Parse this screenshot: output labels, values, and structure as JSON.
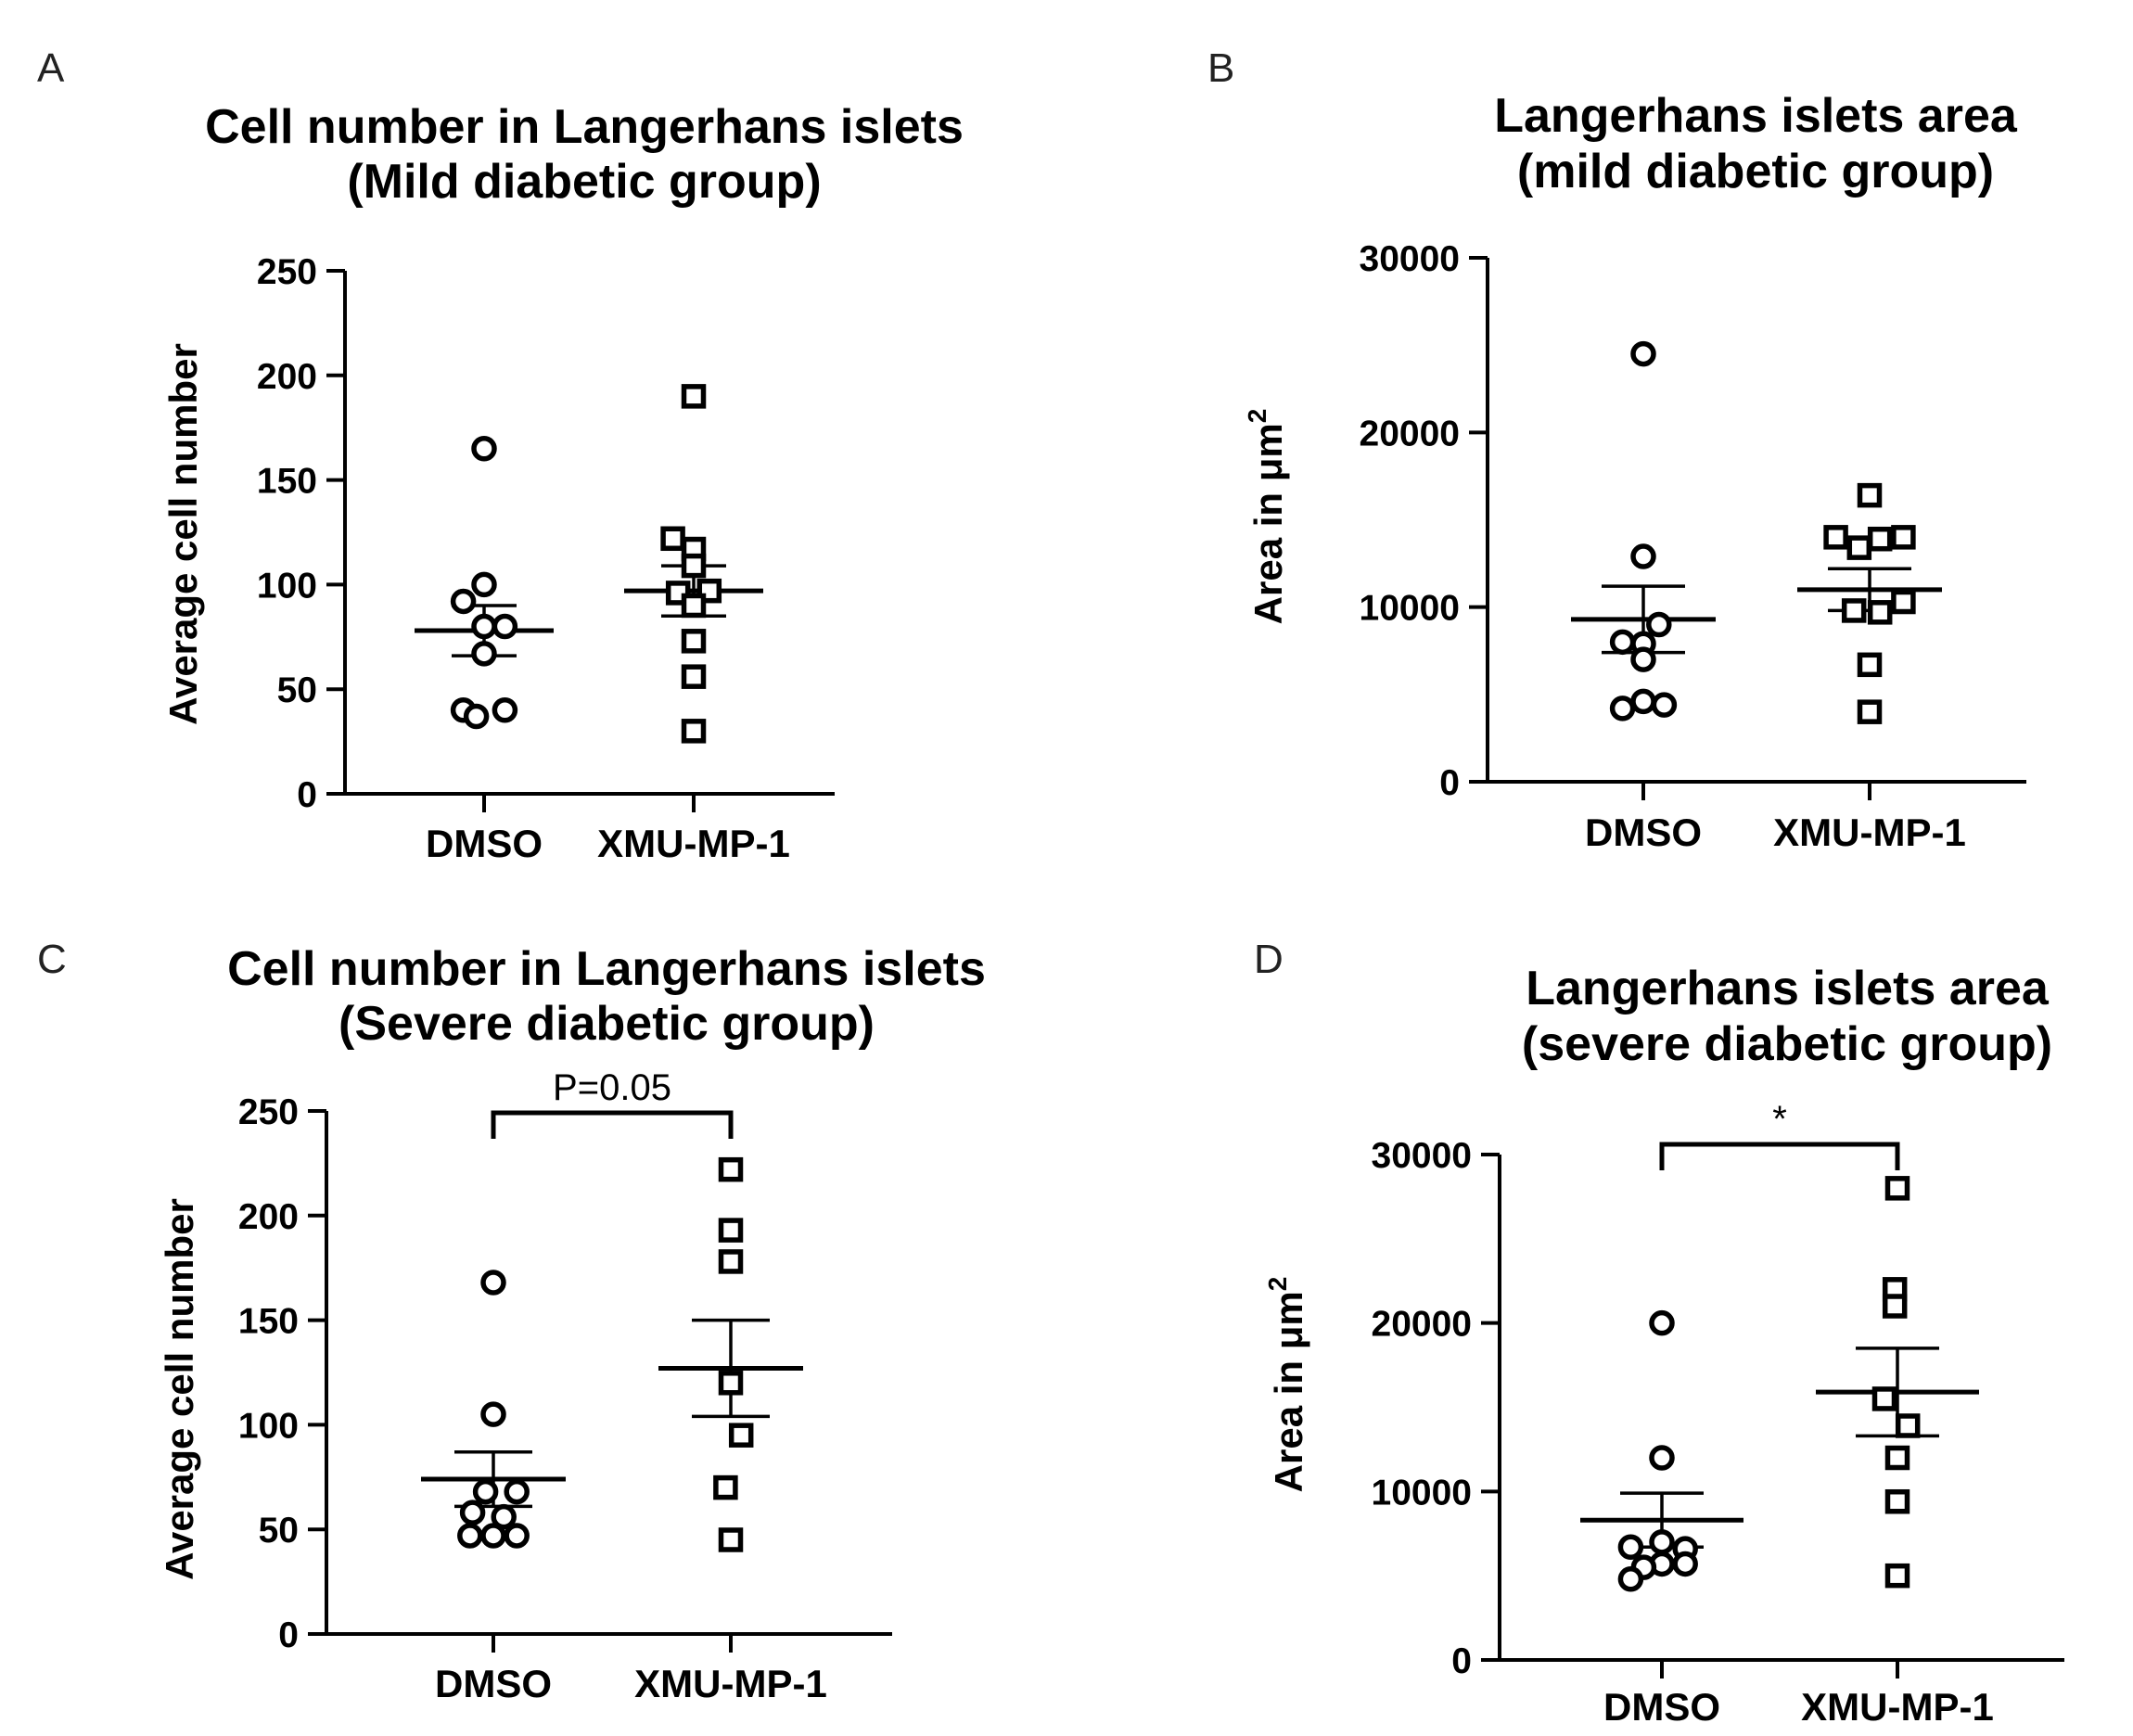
{
  "chart_data": [
    {
      "panel": "A",
      "type": "scatter",
      "title": [
        "Cell number in Langerhans islets",
        "(Mild diabetic group)"
      ],
      "ylabel": "Average cell number",
      "ylabel_sup": "",
      "ylim": [
        0,
        250
      ],
      "yticks": [
        0,
        50,
        100,
        150,
        200,
        250
      ],
      "categories": [
        "DMSO",
        "XMU-MP-1"
      ],
      "series": [
        {
          "name": "DMSO",
          "marker": "circle",
          "mean": 78,
          "sem": 12,
          "values": [
            165,
            100,
            92,
            80,
            80,
            67,
            40,
            40,
            37
          ],
          "offsets": [
            0,
            0,
            -0.4,
            0,
            0.4,
            0,
            -0.4,
            0.4,
            -0.15
          ]
        },
        {
          "name": "XMU-MP-1",
          "marker": "square",
          "mean": 97,
          "sem": 12,
          "values": [
            190,
            122,
            117,
            109,
            96,
            97,
            90,
            73,
            56,
            30
          ],
          "offsets": [
            0,
            -0.4,
            0,
            0,
            -0.3,
            0.3,
            0,
            0,
            0,
            0
          ]
        }
      ],
      "significance": null
    },
    {
      "panel": "B",
      "type": "scatter",
      "title": [
        "Langerhans islets area",
        "(mild diabetic group)"
      ],
      "ylabel": "Area in μm",
      "ylabel_sup": "2",
      "ylim": [
        0,
        30000
      ],
      "yticks": [
        0,
        10000,
        20000,
        30000
      ],
      "categories": [
        "DMSO",
        "XMU-MP-1"
      ],
      "series": [
        {
          "name": "DMSO",
          "marker": "circle",
          "mean": 9300,
          "sem": 1900,
          "values": [
            24500,
            12900,
            9000,
            8000,
            7900,
            7000,
            4600,
            4400,
            4200
          ],
          "offsets": [
            0,
            0,
            0.3,
            -0.4,
            0,
            0,
            0,
            0.4,
            -0.4
          ]
        },
        {
          "name": "XMU-MP-1",
          "marker": "square",
          "mean": 11000,
          "sem": 1200,
          "values": [
            16400,
            14000,
            14000,
            13900,
            13400,
            10300,
            9800,
            9700,
            6700,
            4000
          ],
          "offsets": [
            0,
            -0.65,
            0.65,
            0.2,
            -0.2,
            0.65,
            -0.3,
            0.2,
            0,
            0
          ]
        }
      ],
      "significance": null
    },
    {
      "panel": "C",
      "type": "scatter",
      "title": [
        "Cell number in Langerhans islets",
        "(Severe diabetic group)"
      ],
      "ylabel": "Average cell number",
      "ylabel_sup": "",
      "ylim": [
        0,
        250
      ],
      "yticks": [
        0,
        50,
        100,
        150,
        200,
        250
      ],
      "categories": [
        "DMSO",
        "XMU-MP-1"
      ],
      "series": [
        {
          "name": "DMSO",
          "marker": "circle",
          "mean": 74,
          "sem": 13,
          "values": [
            168,
            105,
            68,
            68,
            58,
            56,
            47,
            47,
            47
          ],
          "offsets": [
            0,
            0,
            -0.15,
            0.45,
            -0.4,
            0.2,
            -0.45,
            0,
            0.45
          ]
        },
        {
          "name": "XMU-MP-1",
          "marker": "square",
          "mean": 127,
          "sem": 23,
          "values": [
            222,
            193,
            178,
            120,
            95,
            70,
            45
          ],
          "offsets": [
            0,
            0,
            0,
            0,
            0.2,
            -0.1,
            0
          ]
        }
      ],
      "significance": {
        "label": "P=0.05"
      }
    },
    {
      "panel": "D",
      "type": "scatter",
      "title": [
        "Langerhans islets area",
        "(severe diabetic group)"
      ],
      "ylabel": "Area in μm",
      "ylabel_sup": "2",
      "ylim": [
        0,
        30000
      ],
      "yticks": [
        0,
        10000,
        20000,
        30000
      ],
      "categories": [
        "DMSO",
        "XMU-MP-1"
      ],
      "series": [
        {
          "name": "DMSO",
          "marker": "circle",
          "mean": 8300,
          "sem": 1600,
          "values": [
            20000,
            12000,
            7000,
            6700,
            6600,
            5700,
            5700,
            5500,
            4800
          ],
          "offsets": [
            0,
            0,
            0,
            -0.6,
            0.45,
            0,
            0.45,
            -0.35,
            -0.6
          ]
        },
        {
          "name": "XMU-MP-1",
          "marker": "square",
          "mean": 15900,
          "sem": 2600,
          "values": [
            28000,
            22000,
            21000,
            15500,
            13900,
            12000,
            9400,
            5000
          ],
          "offsets": [
            0,
            -0.05,
            -0.05,
            -0.25,
            0.2,
            0,
            0,
            0
          ]
        }
      ],
      "significance": {
        "label": "*"
      }
    }
  ]
}
